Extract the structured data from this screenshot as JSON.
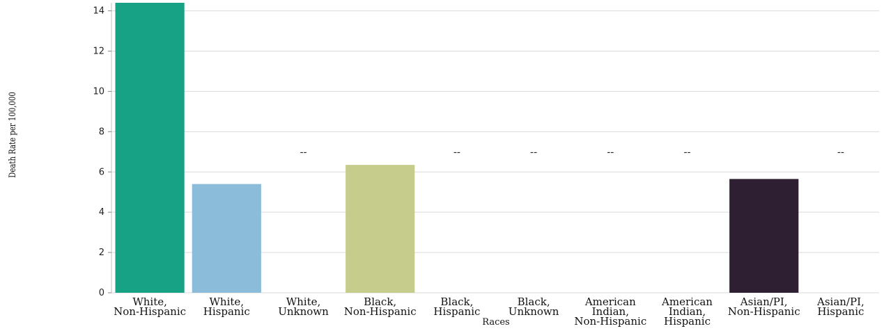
{
  "chart_data": {
    "type": "bar",
    "xlabel": "Races",
    "ylabel": "Death Rate per 100,000",
    "ylim": [
      0,
      14.4
    ],
    "yticks": [
      0,
      2,
      4,
      6,
      8,
      10,
      12,
      14
    ],
    "grid": true,
    "missing_label": "--",
    "categories": [
      [
        "White,",
        "Non-Hispanic"
      ],
      [
        "White,",
        "Hispanic"
      ],
      [
        "White,",
        "Unknown"
      ],
      [
        "Black,",
        "Non-Hispanic"
      ],
      [
        "Black,",
        "Hispanic"
      ],
      [
        "Black,",
        "Unknown"
      ],
      [
        "American",
        "Indian,",
        "Non-Hispanic"
      ],
      [
        "American",
        "Indian,",
        "Hispanic"
      ],
      [
        "Asian/PI,",
        "Non-Hispanic"
      ],
      [
        "Asian/PI,",
        "Hispanic"
      ]
    ],
    "values": [
      14.4,
      5.4,
      null,
      6.35,
      null,
      null,
      null,
      null,
      5.65,
      null
    ],
    "colors": [
      "#17a185",
      "#8bbcd9",
      null,
      "#c6cd8c",
      null,
      null,
      null,
      null,
      "#2e1f33",
      null
    ]
  }
}
